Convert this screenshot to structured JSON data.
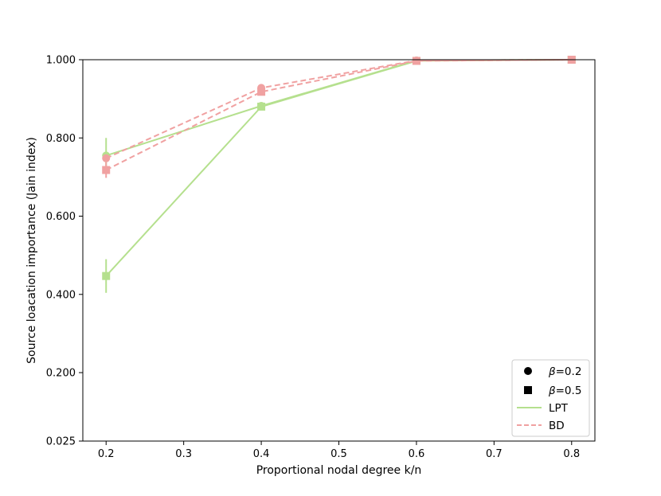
{
  "chart_data": {
    "type": "line",
    "xlabel": "Proportional nodal degree k/n",
    "ylabel": "Source loacation importance (Jain index)",
    "xlim": [
      0.17,
      0.83
    ],
    "ylim": [
      0.025,
      1.0
    ],
    "xticks": [
      0.2,
      0.3,
      0.4,
      0.5,
      0.6,
      0.7,
      0.8
    ],
    "xtick_labels": [
      "0.2",
      "0.3",
      "0.4",
      "0.5",
      "0.6",
      "0.7",
      "0.8"
    ],
    "yticks": [
      0.025,
      0.2,
      0.4,
      0.6,
      0.8,
      1.0
    ],
    "ytick_labels": [
      "0.025",
      "0.200",
      "0.400",
      "0.600",
      "0.800",
      "1.000"
    ],
    "grid": false,
    "legend_position": "lower-right",
    "legend": {
      "markers": [
        {
          "symbol": "circle",
          "prefix": "β",
          "text": "=0.2"
        },
        {
          "symbol": "square",
          "prefix": "β",
          "text": "=0.5"
        }
      ],
      "lines": [
        {
          "style": "solid",
          "label": "LPT",
          "color": "#b5e08e"
        },
        {
          "style": "dashed",
          "label": "BD",
          "color": "#f0a1a1"
        }
      ]
    },
    "series": [
      {
        "method": "LPT",
        "beta": "0.2",
        "marker": "circle",
        "style": "solid",
        "color": "#b5e08e",
        "x": [
          0.2,
          0.4,
          0.6,
          0.8
        ],
        "y": [
          0.755,
          0.882,
          0.998,
          1.0
        ],
        "err": [
          0.045,
          0.006,
          0.002,
          0.0
        ]
      },
      {
        "method": "LPT",
        "beta": "0.5",
        "marker": "square",
        "style": "solid",
        "color": "#b5e08e",
        "x": [
          0.2,
          0.4,
          0.6,
          0.8
        ],
        "y": [
          0.447,
          0.88,
          0.997,
          1.0
        ],
        "err": [
          0.043,
          0.006,
          0.002,
          0.0
        ]
      },
      {
        "method": "BD",
        "beta": "0.2",
        "marker": "circle",
        "style": "dashed",
        "color": "#f0a1a1",
        "x": [
          0.2,
          0.4,
          0.6,
          0.8
        ],
        "y": [
          0.748,
          0.928,
          0.998,
          1.0
        ],
        "err": [
          0.0,
          0.004,
          0.0,
          0.0
        ]
      },
      {
        "method": "BD",
        "beta": "0.5",
        "marker": "square",
        "style": "dashed",
        "color": "#f0a1a1",
        "x": [
          0.2,
          0.4,
          0.6,
          0.8
        ],
        "y": [
          0.718,
          0.918,
          0.997,
          1.0
        ],
        "err": [
          0.02,
          0.004,
          0.0,
          0.0
        ]
      }
    ]
  }
}
